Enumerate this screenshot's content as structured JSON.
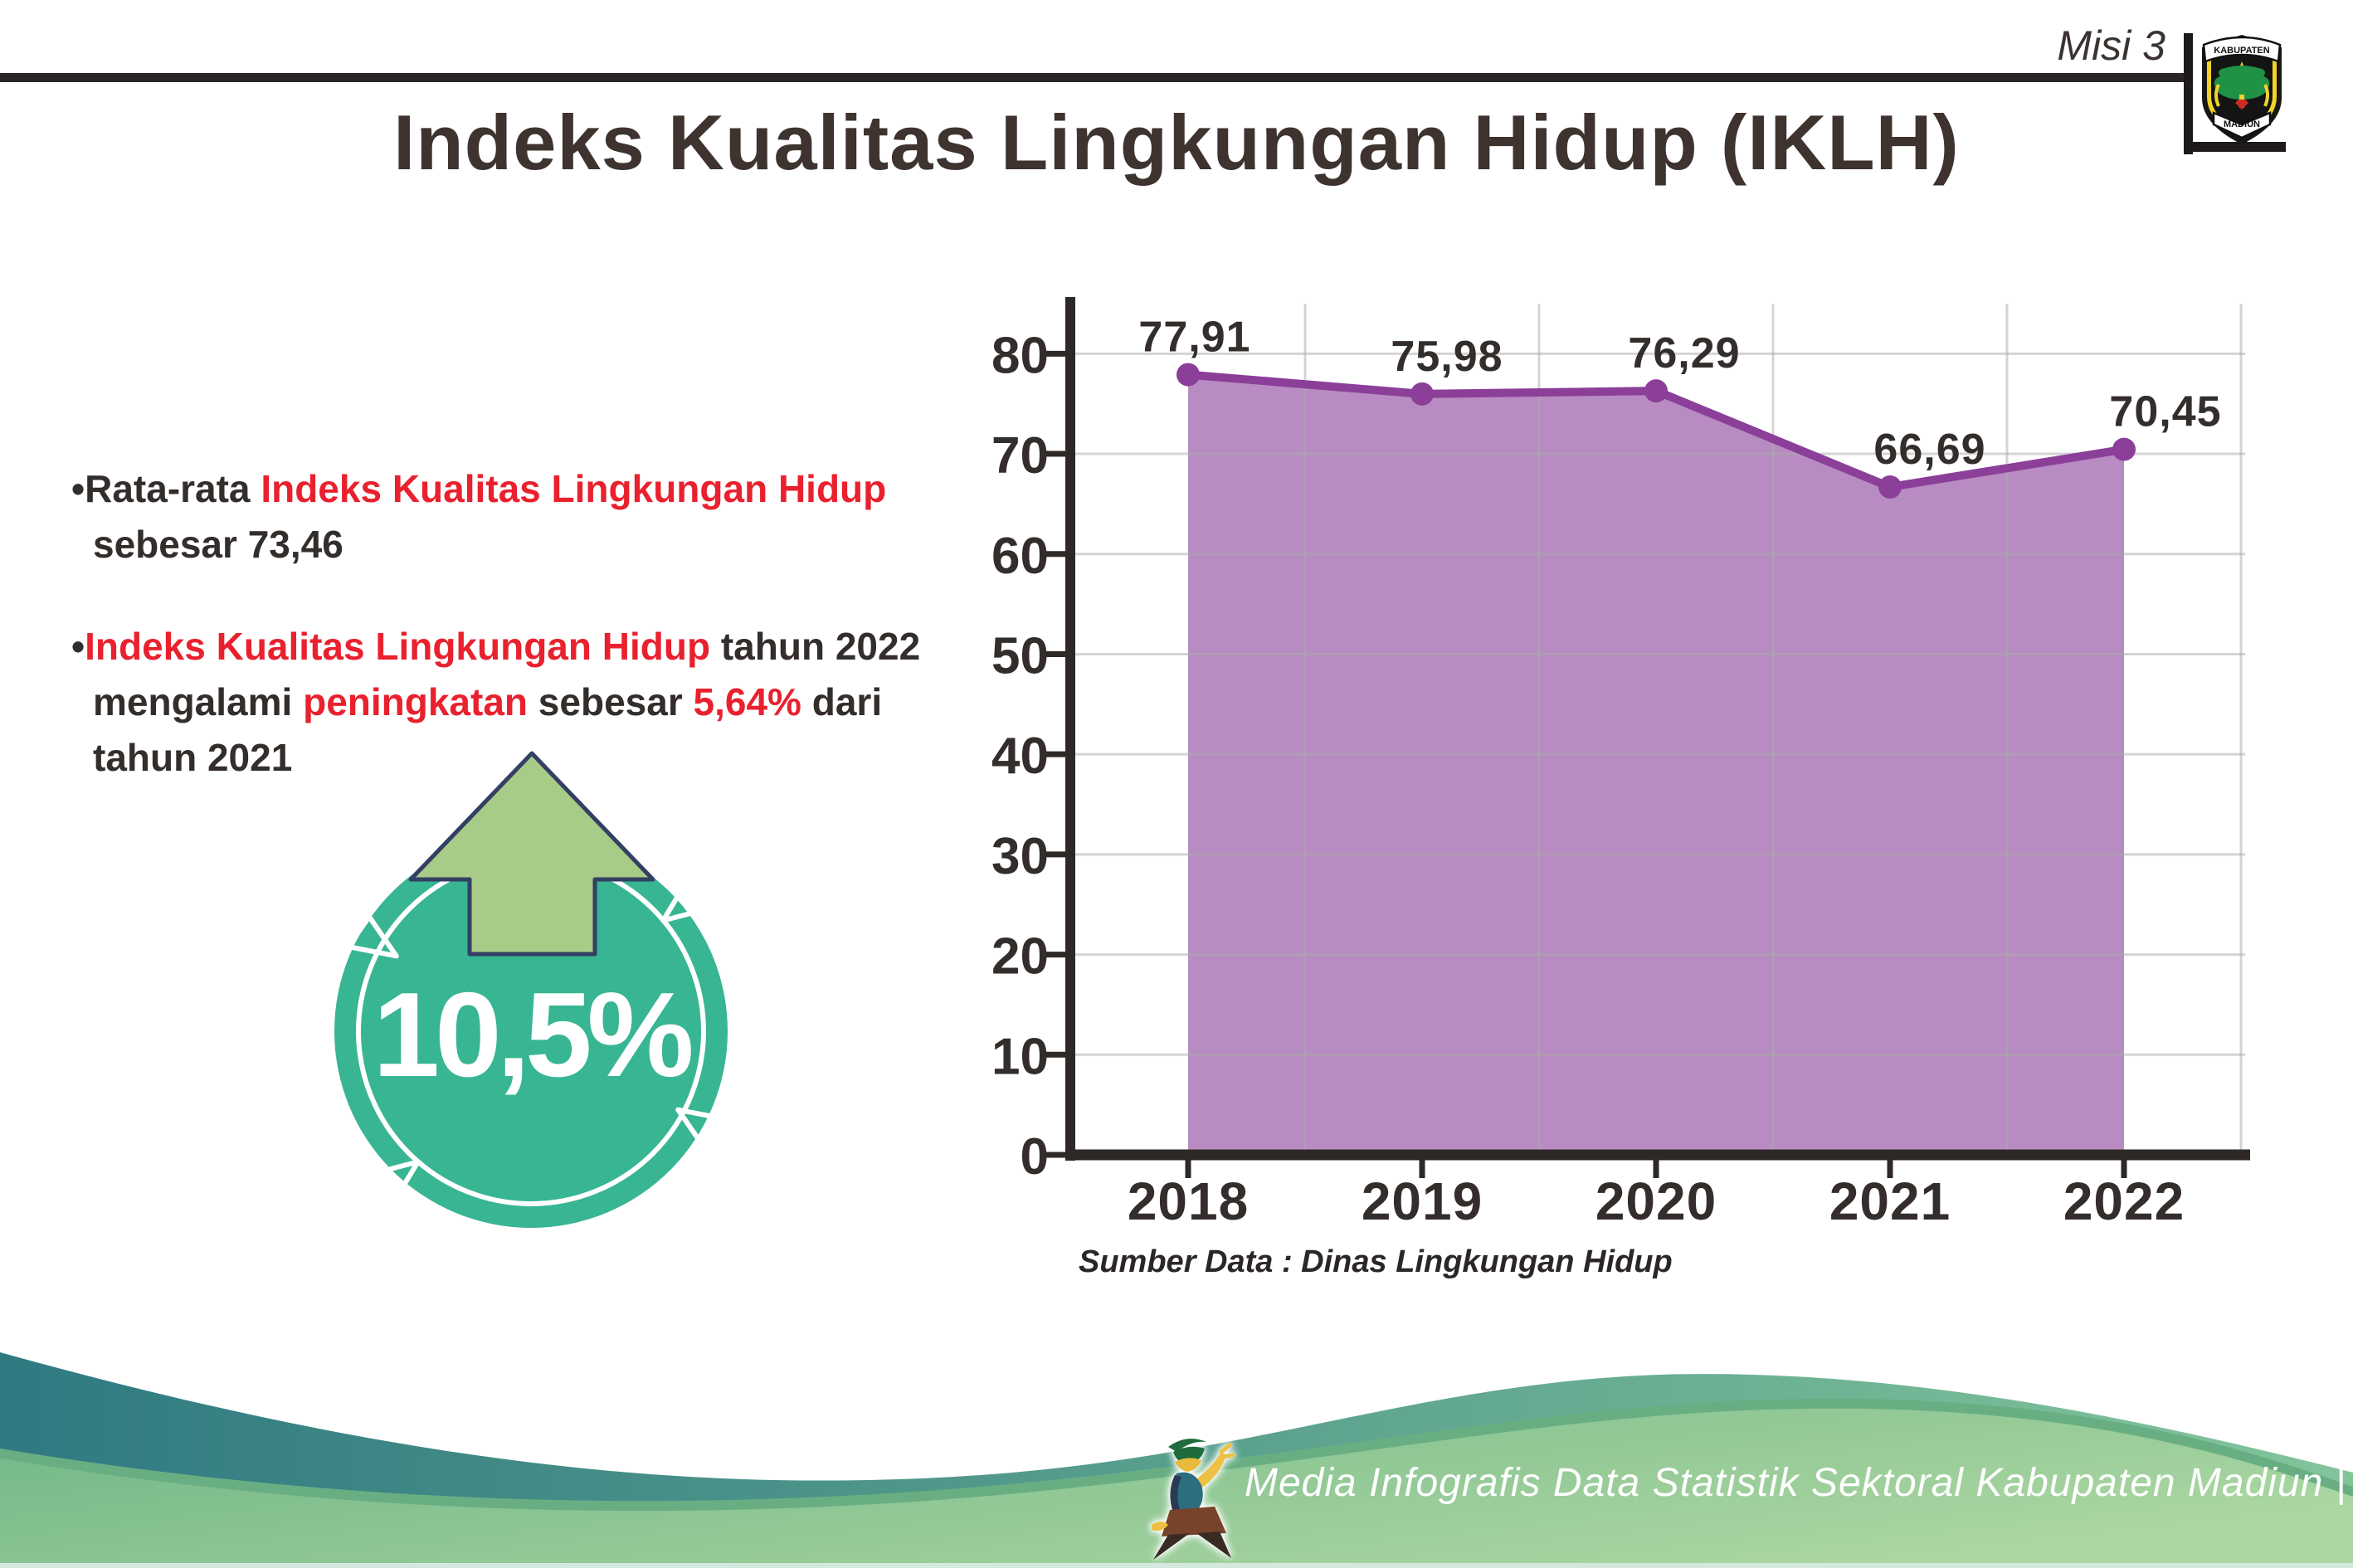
{
  "header": {
    "misi_label": "Misi 3",
    "title": "Indeks Kualitas Lingkungan Hidup (IKLH)"
  },
  "logo_crest": {
    "top": "KABUPATEN",
    "bottom": "MADIUN"
  },
  "bullets": {
    "bullet_char": "•",
    "b1": {
      "s1": "Rata-rata ",
      "s2": "Indeks Kualitas Lingkungan Hidup",
      "s3": "sebesar 73,46"
    },
    "b2": {
      "s1": "Indeks Kualitas Lingkungan Hidup",
      "s2": " tahun 2022",
      "s3": "mengalami ",
      "s4": "peningkatan",
      "s5": " sebesar ",
      "s6": "5,64%",
      "s7": " dari",
      "s8": "tahun 2021"
    }
  },
  "badge": {
    "value": "10,5%"
  },
  "chart_data": {
    "type": "area",
    "categories": [
      "2018",
      "2019",
      "2020",
      "2021",
      "2022"
    ],
    "values": [
      77.91,
      75.98,
      76.29,
      66.69,
      70.45
    ],
    "point_labels": [
      "77,91",
      "75,98",
      "76,29",
      "66,69",
      "70,45"
    ],
    "y_ticks": [
      0,
      10,
      20,
      30,
      40,
      50,
      60,
      70,
      80
    ],
    "ylim": [
      0,
      85
    ],
    "title": "Indeks Kualitas Lingkungan Hidup (IKLH)",
    "xlabel": "",
    "ylabel": "",
    "grid": true,
    "legend": false,
    "line_color": "#8b3f99",
    "fill_color": "#b88cc2",
    "source": "Sumber Data : Dinas Lingkungan Hidup"
  },
  "footer": {
    "text": "Media Infografis Data Statistik Sektoral Kabupaten Madiun |"
  },
  "colors": {
    "accent_red": "#e9212e",
    "text_dark": "#332d2b",
    "badge_teal": "#38b593",
    "arrow_green": "#a8cb88",
    "wave_teal": "#2f7a81",
    "wave_green": "#6fb587"
  }
}
